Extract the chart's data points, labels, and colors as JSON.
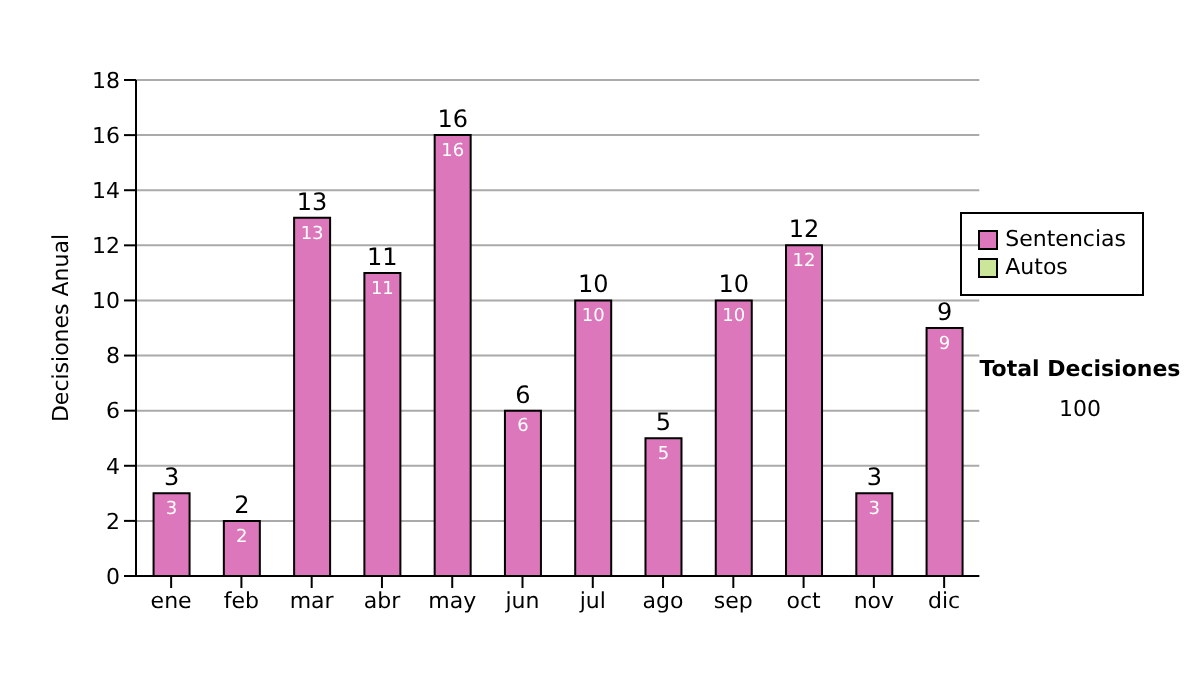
{
  "chart_data": {
    "type": "bar",
    "ylabel": "Decisiones Anual",
    "categories": [
      "ene",
      "feb",
      "mar",
      "abr",
      "may",
      "jun",
      "jul",
      "ago",
      "sep",
      "oct",
      "nov",
      "dic"
    ],
    "series": [
      {
        "name": "Sentencias",
        "color": "#dd77bb",
        "values": [
          3,
          2,
          13,
          11,
          16,
          6,
          10,
          5,
          10,
          12,
          3,
          9
        ]
      },
      {
        "name": "Autos",
        "color": "#cce699",
        "values": [
          null,
          null,
          null,
          null,
          null,
          null,
          null,
          null,
          null,
          null,
          null,
          null
        ]
      }
    ],
    "stacked": true,
    "data_labels": true,
    "totals": [
      "3",
      "2",
      "13",
      "11",
      "16",
      "6",
      "10",
      "5",
      "10",
      "12",
      "3",
      "9"
    ],
    "ylim": [
      0,
      18
    ],
    "yticks": [
      0,
      2,
      4,
      6,
      8,
      10,
      12,
      14,
      16,
      18
    ],
    "grid": "y",
    "legend": "right",
    "annotations": [
      "Total Decisiones",
      "100"
    ]
  }
}
